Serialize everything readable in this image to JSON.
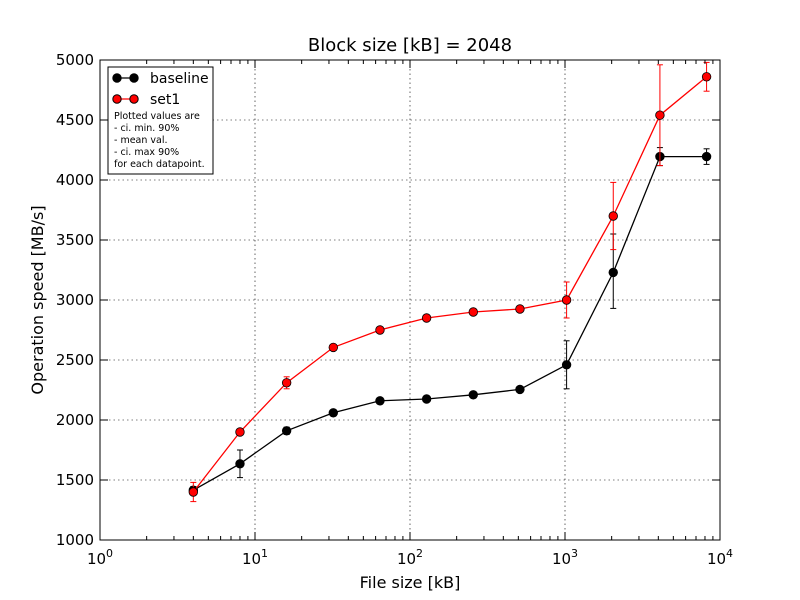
{
  "chart_data": {
    "type": "line",
    "title": "Block size [kB] = 2048",
    "xlabel": "File size [kB]",
    "ylabel": "Operation speed [MB/s]",
    "xscale": "log",
    "xlim": [
      1,
      10000
    ],
    "ylim": [
      1000,
      5000
    ],
    "grid": true,
    "legend_position": "top-left",
    "x_ticks": [
      {
        "base": "10",
        "exp": "0"
      },
      {
        "base": "10",
        "exp": "1"
      },
      {
        "base": "10",
        "exp": "2"
      },
      {
        "base": "10",
        "exp": "3"
      },
      {
        "base": "10",
        "exp": "4"
      }
    ],
    "y_ticks": [
      "1000",
      "1500",
      "2000",
      "2500",
      "3000",
      "3500",
      "4000",
      "4500",
      "5000"
    ],
    "x": [
      4,
      8,
      16,
      32,
      64,
      128,
      256,
      512,
      1024,
      2048,
      4096,
      8192
    ],
    "series": [
      {
        "name": "baseline",
        "color": "#000000",
        "values": [
          1415,
          1635,
          1910,
          2060,
          2160,
          2175,
          2210,
          2255,
          2460,
          3230,
          4195,
          4195
        ],
        "err_low": [
          1385,
          1520,
          1880,
          2040,
          2150,
          2160,
          2200,
          2245,
          2260,
          2930,
          4120,
          4130
        ],
        "err_high": [
          1445,
          1750,
          1940,
          2080,
          2170,
          2190,
          2220,
          2265,
          2660,
          3550,
          4270,
          4260
        ]
      },
      {
        "name": "set1",
        "color": "#ff0000",
        "values": [
          1400,
          1900,
          2310,
          2605,
          2750,
          2850,
          2900,
          2925,
          3000,
          3700,
          4540,
          4860
        ],
        "err_low": [
          1320,
          1890,
          2260,
          2595,
          2745,
          2845,
          2895,
          2920,
          2850,
          3420,
          4120,
          4740
        ],
        "err_high": [
          1480,
          1910,
          2360,
          2615,
          2755,
          2855,
          2905,
          2930,
          3150,
          3980,
          4960,
          4980
        ]
      }
    ],
    "legend_note": [
      "Plotted values are",
      " - ci. min. 90%",
      " - mean val.",
      " - ci. max 90%",
      "for each datapoint."
    ]
  }
}
